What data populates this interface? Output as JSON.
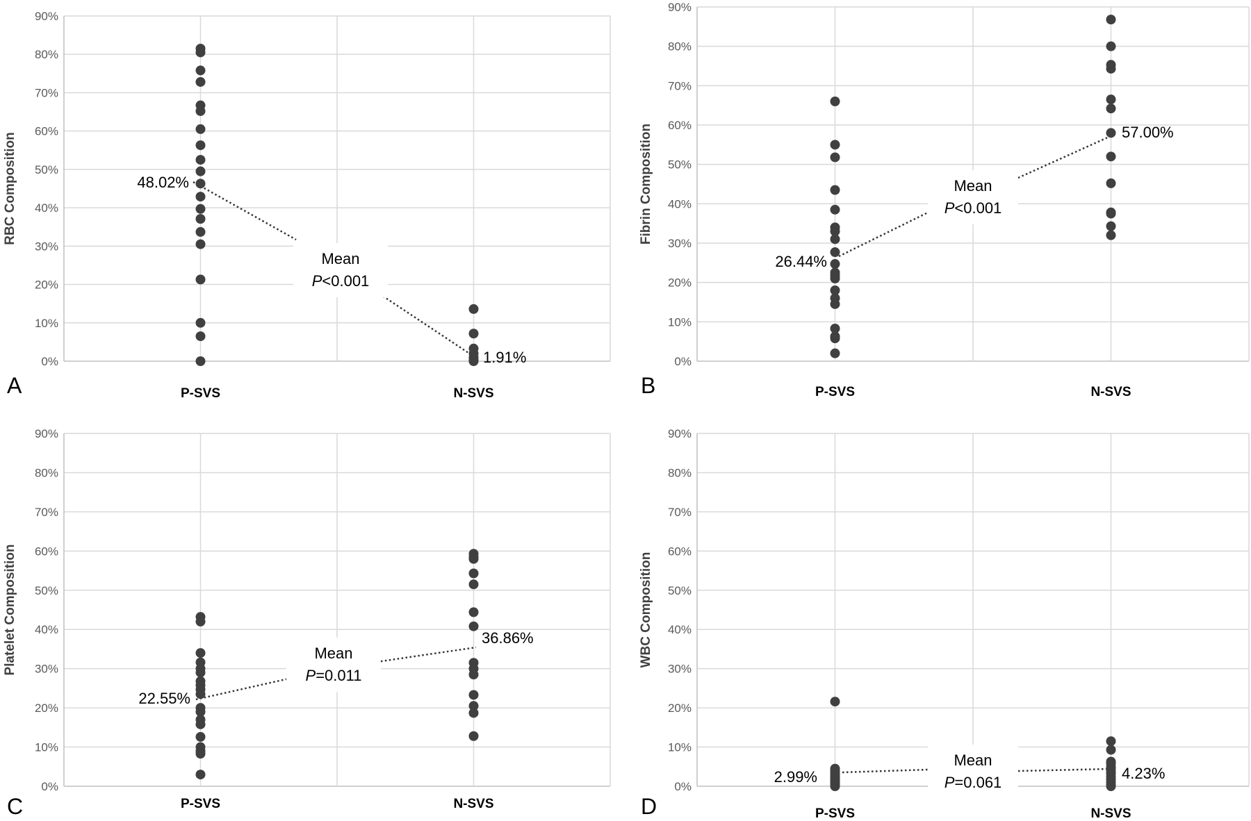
{
  "chart_data": [
    {
      "type": "scatter",
      "panel_label": "A",
      "ylabel": "RBC Composition",
      "categories": [
        "P-SVS",
        "N-SVS"
      ],
      "yticks": [
        "0%",
        "10%",
        "20%",
        "30%",
        "40%",
        "50%",
        "60%",
        "70%",
        "80%",
        "90%"
      ],
      "ylim": [
        0,
        90
      ],
      "grid": true,
      "series": [
        {
          "category": "P-SVS",
          "values": [
            81.5,
            80.5,
            75.8,
            72.8,
            66.7,
            65.2,
            60.5,
            56.3,
            52.5,
            49.5,
            46.3,
            42.9,
            39.7,
            37.1,
            33.7,
            30.5,
            21.3,
            10.0,
            6.5,
            0
          ]
        },
        {
          "category": "N-SVS",
          "values": [
            13.6,
            7.2,
            3.3,
            2.0,
            1.0,
            0.4,
            0.1,
            0
          ]
        }
      ],
      "means": [
        {
          "category": "P-SVS",
          "value": 48.02,
          "label": "48.02%"
        },
        {
          "category": "N-SVS",
          "value": 1.91,
          "label": "1.91%"
        }
      ],
      "annotation": {
        "mean_label": "Mean",
        "p_symbol": "P",
        "p_value": "<0.001"
      }
    },
    {
      "type": "scatter",
      "panel_label": "B",
      "ylabel": "Fibrin Composition",
      "categories": [
        "P-SVS",
        "N-SVS"
      ],
      "yticks": [
        "0%",
        "10%",
        "20%",
        "30%",
        "40%",
        "50%",
        "60%",
        "70%",
        "80%",
        "90%"
      ],
      "ylim": [
        0,
        90
      ],
      "grid": true,
      "series": [
        {
          "category": "P-SVS",
          "values": [
            66.0,
            55.0,
            51.8,
            43.5,
            38.5,
            34.0,
            33.0,
            31.0,
            27.7,
            24.7,
            22.5,
            21.8,
            21.0,
            18.0,
            16.0,
            14.5,
            8.3,
            6.3,
            5.8,
            2.0
          ]
        },
        {
          "category": "N-SVS",
          "values": [
            86.8,
            80.0,
            75.3,
            74.3,
            66.5,
            64.2,
            58.0,
            52.0,
            45.2,
            37.8,
            37.5,
            34.3,
            32.0
          ]
        }
      ],
      "means": [
        {
          "category": "P-SVS",
          "value": 26.44,
          "label": "26.44%"
        },
        {
          "category": "N-SVS",
          "value": 57.0,
          "label": "57.00%"
        }
      ],
      "annotation": {
        "mean_label": "Mean",
        "p_symbol": "P",
        "p_value": "<0.001"
      }
    },
    {
      "type": "scatter",
      "panel_label": "C",
      "ylabel": "Platelet Composition",
      "categories": [
        "P-SVS",
        "N-SVS"
      ],
      "yticks": [
        "0%",
        "10%",
        "20%",
        "30%",
        "40%",
        "50%",
        "60%",
        "70%",
        "80%",
        "90%"
      ],
      "ylim": [
        0,
        90
      ],
      "grid": true,
      "series": [
        {
          "category": "P-SVS",
          "values": [
            43.2,
            42.0,
            34.0,
            31.6,
            30.0,
            29.0,
            26.8,
            25.8,
            24.7,
            23.5,
            20.0,
            19.0,
            17.0,
            15.8,
            12.6,
            10.0,
            9.0,
            8.3,
            3.0
          ]
        },
        {
          "category": "N-SVS",
          "values": [
            59.3,
            58.5,
            58.0,
            54.3,
            51.5,
            44.4,
            40.8,
            31.5,
            30.0,
            28.5,
            23.3,
            20.5,
            18.7,
            12.8
          ]
        }
      ],
      "means": [
        {
          "category": "P-SVS",
          "value": 22.55,
          "label": "22.55%"
        },
        {
          "category": "N-SVS",
          "value": 36.86,
          "label": "36.86%"
        }
      ],
      "annotation": {
        "mean_label": "Mean",
        "p_symbol": "P",
        "p_value": "=0.011"
      }
    },
    {
      "type": "scatter",
      "panel_label": "D",
      "ylabel": "WBC Composition",
      "categories": [
        "P-SVS",
        "N-SVS"
      ],
      "yticks": [
        "0%",
        "10%",
        "20%",
        "30%",
        "40%",
        "50%",
        "60%",
        "70%",
        "80%",
        "90%"
      ],
      "ylim": [
        0,
        90
      ],
      "grid": true,
      "series": [
        {
          "category": "P-SVS",
          "values": [
            21.6,
            4.5,
            4.0,
            3.5,
            3.0,
            2.6,
            2.2,
            1.8,
            1.4,
            1.0,
            0.6,
            0.3,
            0
          ]
        },
        {
          "category": "N-SVS",
          "values": [
            11.5,
            9.3,
            6.3,
            5.8,
            5.0,
            4.5,
            3.8,
            3.3,
            2.5,
            1.8,
            1.0,
            0.3,
            0
          ]
        }
      ],
      "means": [
        {
          "category": "P-SVS",
          "value": 2.99,
          "label": "2.99%"
        },
        {
          "category": "N-SVS",
          "value": 4.23,
          "label": "4.23%"
        }
      ],
      "annotation": {
        "mean_label": "Mean",
        "p_symbol": "P",
        "p_value": "=0.061"
      }
    }
  ],
  "colors": {
    "marker": "#404040",
    "grid": "#d9d9d9",
    "axis": "#bfbfbf",
    "mean_line": "#333333"
  }
}
